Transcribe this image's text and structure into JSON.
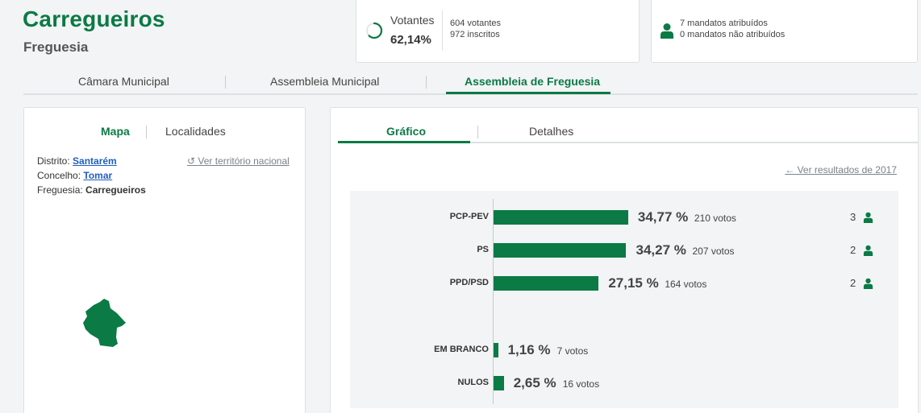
{
  "header": {
    "title": "Carregueiros",
    "subtitle": "Freguesia"
  },
  "votantes": {
    "label": "Votantes",
    "percent": "62,14%",
    "percent_value": 62.14,
    "voters": "604 votantes",
    "registered": "972 inscritos"
  },
  "mandatos": {
    "assigned": "7 mandatos atribuídos",
    "unassigned": "0 mandatos não atribuídos"
  },
  "main_tabs": [
    {
      "label": "Câmara Municipal",
      "active": false
    },
    {
      "label": "Assembleia Municipal",
      "active": false
    },
    {
      "label": "Assembleia de Freguesia",
      "active": true
    }
  ],
  "left_panel": {
    "tabs": [
      "Mapa",
      "Localidades"
    ],
    "distrito_label": "Distrito:",
    "distrito": "Santarém",
    "concelho_label": "Concelho:",
    "concelho": "Tomar",
    "freguesia_label": "Freguesia:",
    "freguesia": "Carregueiros",
    "national_link": "Ver território nacional"
  },
  "right_panel": {
    "tabs": [
      "Gráfico",
      "Detalhes"
    ],
    "prev_link": "Ver resultados de 2017"
  },
  "colors": {
    "accent": "#0b7a45",
    "link": "#1f5fbf"
  },
  "chart_data": {
    "type": "bar",
    "orientation": "horizontal",
    "rows": [
      {
        "label": "PCP-PEV",
        "percent": "34,77 %",
        "value": 34.77,
        "votes": "210 votos",
        "mandates": "3"
      },
      {
        "label": "PS",
        "percent": "34,27 %",
        "value": 34.27,
        "votes": "207 votos",
        "mandates": "2"
      },
      {
        "label": "PPD/PSD",
        "percent": "27,15 %",
        "value": 27.15,
        "votes": "164 votos",
        "mandates": "2"
      },
      {
        "label": "EM BRANCO",
        "percent": "1,16 %",
        "value": 1.16,
        "votes": "7 votos",
        "mandates": ""
      },
      {
        "label": "NULOS",
        "percent": "2,65 %",
        "value": 2.65,
        "votes": "16 votos",
        "mandates": ""
      }
    ]
  }
}
